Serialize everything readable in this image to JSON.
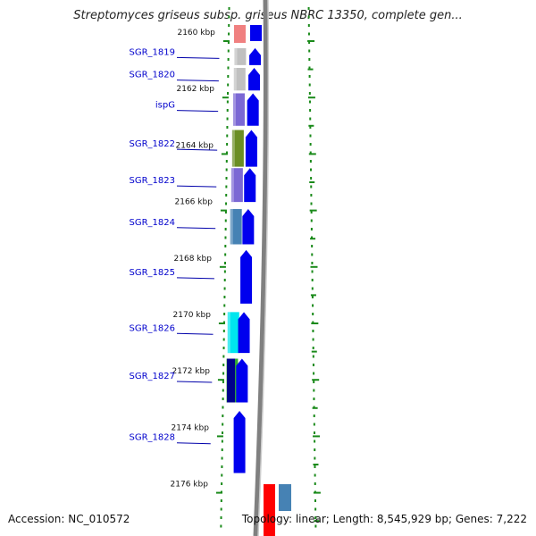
{
  "title": "Streptomyces griseus subsp. griseus NBRC 13350, complete gen...",
  "accession": "Accession: NC_010572",
  "topology": "Topology: linear; Length: 8,545,929 bp; Genes: 7,222",
  "colors": {
    "cds_blue": "#0000ee",
    "label_blue": "#0000cc",
    "ruler_green": "#1a8a1a",
    "backbone_gray": "#808080"
  },
  "kbp_ticks": [
    {
      "label": "2160 kbp",
      "kbp": 2160
    },
    {
      "label": "2162 kbp",
      "kbp": 2162
    },
    {
      "label": "2164 kbp",
      "kbp": 2164
    },
    {
      "label": "2166 kbp",
      "kbp": 2166
    },
    {
      "label": "2168 kbp",
      "kbp": 2168
    },
    {
      "label": "2170 kbp",
      "kbp": 2170
    },
    {
      "label": "2172 kbp",
      "kbp": 2172
    },
    {
      "label": "2174 kbp",
      "kbp": 2174
    },
    {
      "label": "2176 kbp",
      "kbp": 2176
    }
  ],
  "genes": [
    {
      "name": "SGR_1819",
      "start_kbp": 2160.25,
      "end_kbp": 2160.85,
      "color": "#c0c0c0"
    },
    {
      "name": "SGR_1820",
      "start_kbp": 2160.95,
      "end_kbp": 2161.75,
      "color": "#c0c0c0"
    },
    {
      "name": "ispG",
      "start_kbp": 2161.85,
      "end_kbp": 2163.0,
      "color": "#7b68d4"
    },
    {
      "name": "SGR_1822",
      "start_kbp": 2163.15,
      "end_kbp": 2164.45,
      "color": "#6b8e23"
    },
    {
      "name": "SGR_1823",
      "start_kbp": 2164.5,
      "end_kbp": 2165.7,
      "color": "#7b68d4"
    },
    {
      "name": "SGR_1824",
      "start_kbp": 2165.95,
      "end_kbp": 2167.2,
      "color": "#4682b4"
    },
    {
      "name": "SGR_1825",
      "start_kbp": 2167.4,
      "end_kbp": 2169.3,
      "color": ""
    },
    {
      "name": "SGR_1826",
      "start_kbp": 2169.6,
      "end_kbp": 2171.05,
      "color": "#00e5ee"
    },
    {
      "name": "SGR_1827",
      "start_kbp": 2171.25,
      "end_kbp": 2172.8,
      "color": "#33aa33"
    },
    {
      "name": "SGR_1828",
      "start_kbp": 2173.1,
      "end_kbp": 2175.3,
      "color": ""
    }
  ]
}
